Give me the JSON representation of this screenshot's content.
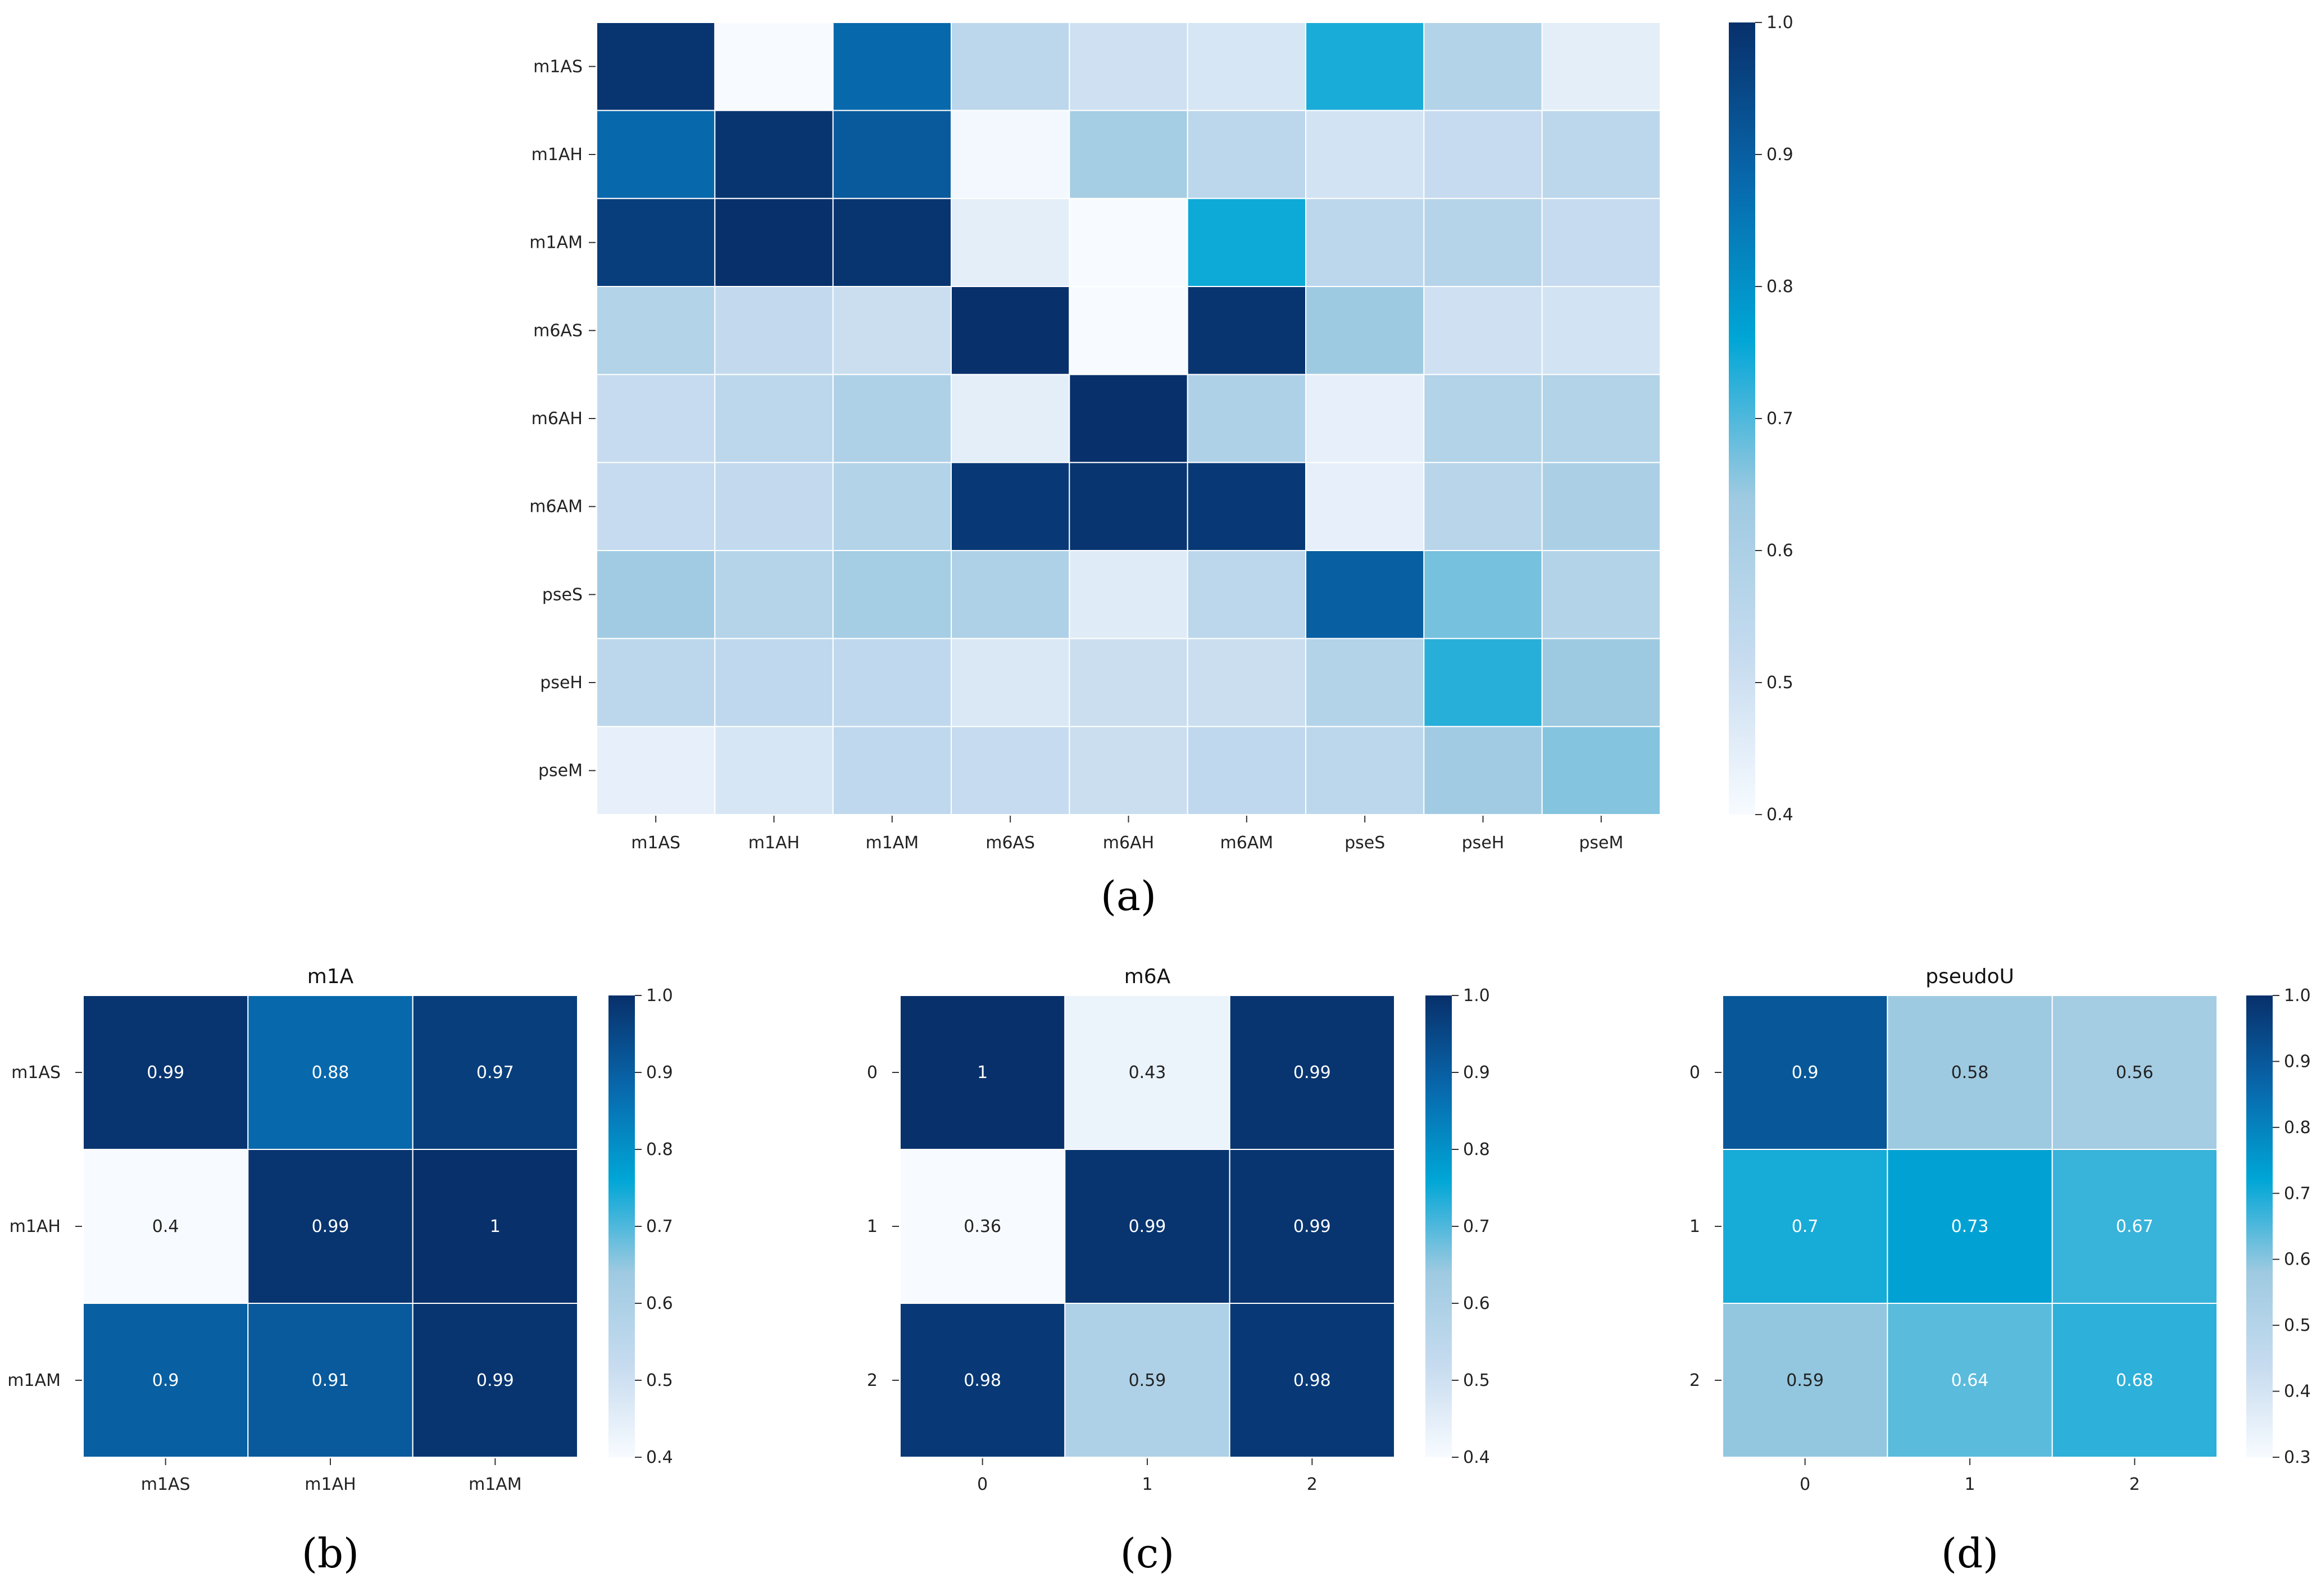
{
  "colors": {
    "scale": [
      "#f7fbff",
      "#c6dbef",
      "#9ecae1",
      "#00a6d6",
      "#0868ac",
      "#08306b"
    ],
    "cell_border": "#ffffff",
    "text_light": "#ffffff",
    "text_dark": "#222222"
  },
  "chart_data": [
    {
      "id": "a",
      "type": "heatmap",
      "panel_label": "(a)",
      "title": "",
      "categories_x": [
        "m1AS",
        "m1AH",
        "m1AM",
        "m6AS",
        "m6AH",
        "m6AM",
        "pseS",
        "pseH",
        "pseM"
      ],
      "categories_y": [
        "m1AS",
        "m1AH",
        "m1AM",
        "m6AS",
        "m6AH",
        "m6AM",
        "pseS",
        "pseH",
        "pseM"
      ],
      "values": [
        [
          0.99,
          0.4,
          0.88,
          0.55,
          0.5,
          0.48,
          0.74,
          0.58,
          0.45
        ],
        [
          0.88,
          0.99,
          0.91,
          0.41,
          0.62,
          0.55,
          0.49,
          0.52,
          0.55
        ],
        [
          0.97,
          1.0,
          0.99,
          0.45,
          0.4,
          0.75,
          0.55,
          0.57,
          0.52
        ],
        [
          0.58,
          0.53,
          0.51,
          1.0,
          0.4,
          0.99,
          0.64,
          0.5,
          0.49
        ],
        [
          0.52,
          0.55,
          0.59,
          0.45,
          1.0,
          0.59,
          0.44,
          0.58,
          0.58
        ],
        [
          0.52,
          0.53,
          0.58,
          0.98,
          0.99,
          0.98,
          0.44,
          0.56,
          0.6
        ],
        [
          0.63,
          0.57,
          0.62,
          0.59,
          0.46,
          0.55,
          0.9,
          0.67,
          0.58
        ],
        [
          0.55,
          0.54,
          0.54,
          0.47,
          0.51,
          0.51,
          0.58,
          0.73,
          0.64
        ],
        [
          0.44,
          0.48,
          0.54,
          0.52,
          0.51,
          0.54,
          0.55,
          0.63,
          0.66
        ]
      ],
      "annotate": false,
      "vmin": 0.4,
      "vmax": 1.0,
      "colorbar_ticks": [
        "0.4",
        "0.5",
        "0.6",
        "0.7",
        "0.8",
        "0.9",
        "1.0"
      ]
    },
    {
      "id": "b",
      "type": "heatmap",
      "panel_label": "(b)",
      "title": "m1A",
      "categories_x": [
        "m1AS",
        "m1AH",
        "m1AM"
      ],
      "categories_y": [
        "m1AS",
        "m1AH",
        "m1AM"
      ],
      "values": [
        [
          0.99,
          0.88,
          0.97
        ],
        [
          0.4,
          0.99,
          1
        ],
        [
          0.9,
          0.91,
          0.99
        ]
      ],
      "annotations": [
        [
          "0.99",
          "0.88",
          "0.97"
        ],
        [
          "0.4",
          "0.99",
          "1"
        ],
        [
          "0.9",
          "0.91",
          "0.99"
        ]
      ],
      "annotate": true,
      "vmin": 0.4,
      "vmax": 1.0,
      "colorbar_ticks": [
        "0.4",
        "0.5",
        "0.6",
        "0.7",
        "0.8",
        "0.9",
        "1.0"
      ]
    },
    {
      "id": "c",
      "type": "heatmap",
      "panel_label": "(c)",
      "title": "m6A",
      "categories_x": [
        "0",
        "1",
        "2"
      ],
      "categories_y": [
        "0",
        "1",
        "2"
      ],
      "values": [
        [
          1,
          0.43,
          0.99
        ],
        [
          0.36,
          0.99,
          0.99
        ],
        [
          0.98,
          0.59,
          0.98
        ]
      ],
      "annotations": [
        [
          "1",
          "0.43",
          "0.99"
        ],
        [
          "0.36",
          "0.99",
          "0.99"
        ],
        [
          "0.98",
          "0.59",
          "0.98"
        ]
      ],
      "annotate": true,
      "vmin": 0.4,
      "vmax": 1.0,
      "colorbar_ticks": [
        "0.4",
        "0.5",
        "0.6",
        "0.7",
        "0.8",
        "0.9",
        "1.0"
      ]
    },
    {
      "id": "d",
      "type": "heatmap",
      "panel_label": "(d)",
      "title": "pseudoU",
      "categories_x": [
        "0",
        "1",
        "2"
      ],
      "categories_y": [
        "0",
        "1",
        "2"
      ],
      "values": [
        [
          0.9,
          0.58,
          0.56
        ],
        [
          0.7,
          0.73,
          0.67
        ],
        [
          0.59,
          0.64,
          0.68
        ]
      ],
      "annotations": [
        [
          "0.9",
          "0.58",
          "0.56"
        ],
        [
          "0.7",
          "0.73",
          "0.67"
        ],
        [
          "0.59",
          "0.64",
          "0.68"
        ]
      ],
      "annotate": true,
      "vmin": 0.3,
      "vmax": 1.0,
      "colorbar_ticks": [
        "0.3",
        "0.4",
        "0.5",
        "0.6",
        "0.7",
        "0.8",
        "0.9",
        "1.0"
      ]
    }
  ]
}
